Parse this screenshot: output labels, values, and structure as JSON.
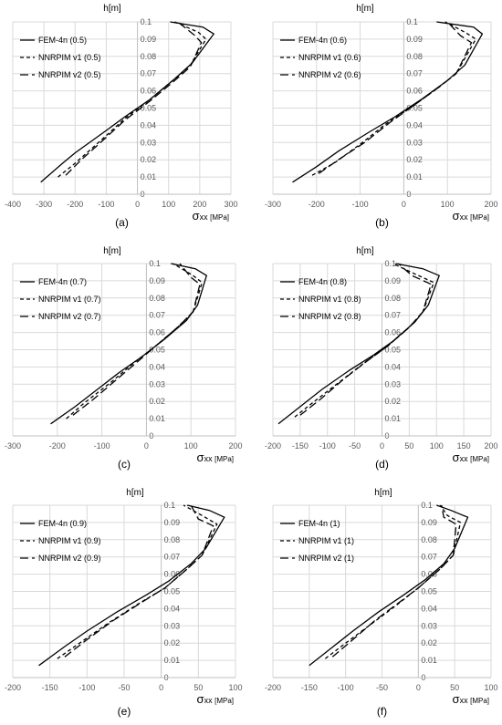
{
  "chart_data": [
    {
      "type": "line",
      "panel_label": "(a)",
      "ylabel": "h[m]",
      "xlabel_symbol": "σ",
      "xlabel_sub": "xx",
      "xlabel_unit": "[MPa]",
      "xlim": [
        -400,
        300
      ],
      "xticks": [
        "-400",
        "-300",
        "-200",
        "-100",
        "0",
        "100",
        "200",
        "300"
      ],
      "ylim": [
        0,
        0.1
      ],
      "yticks": [
        "0",
        "0.01",
        "0.02",
        "0.03",
        "0.04",
        "0.05",
        "0.06",
        "0.07",
        "0.08",
        "0.09",
        "0.1"
      ],
      "grid": true,
      "legend_position": "top-left",
      "series": [
        {
          "name": "FEM-4n (0.5)",
          "style": "solid",
          "x": [
            -310,
            -240,
            -200,
            -100,
            -40,
            40,
            120,
            175,
            245,
            210,
            105
          ],
          "y": [
            0.007,
            0.018,
            0.024,
            0.037,
            0.045,
            0.055,
            0.067,
            0.076,
            0.093,
            0.097,
            0.1
          ]
        },
        {
          "name": "NNRPIM v1 (0.5)",
          "style": "dashed",
          "x": [
            -255,
            -200,
            -100,
            -40,
            40,
            120,
            170,
            220,
            195,
            120
          ],
          "y": [
            0.01,
            0.018,
            0.034,
            0.044,
            0.055,
            0.067,
            0.075,
            0.09,
            0.094,
            0.1
          ]
        },
        {
          "name": "NNRPIM v2 (0.5)",
          "style": "longdash",
          "x": [
            -230,
            -180,
            -100,
            -40,
            40,
            120,
            170,
            205,
            185,
            130
          ],
          "y": [
            0.011,
            0.02,
            0.033,
            0.043,
            0.054,
            0.066,
            0.074,
            0.088,
            0.092,
            0.1
          ]
        }
      ]
    },
    {
      "type": "line",
      "panel_label": "(b)",
      "ylabel": "h[m]",
      "xlabel_symbol": "σ",
      "xlabel_sub": "xx",
      "xlabel_unit": "[MPa]",
      "xlim": [
        -300,
        200
      ],
      "xticks": [
        "-300",
        "-200",
        "-100",
        "0",
        "100",
        "200"
      ],
      "ylim": [
        0,
        0.1
      ],
      "yticks": [
        "0",
        "0.01",
        "0.02",
        "0.03",
        "0.04",
        "0.05",
        "0.06",
        "0.07",
        "0.08",
        "0.09",
        "0.1"
      ],
      "grid": true,
      "legend_position": "top-left",
      "series": [
        {
          "name": "FEM-4n (0.6)",
          "style": "solid",
          "x": [
            -255,
            -200,
            -150,
            -80,
            -20,
            40,
            100,
            140,
            180,
            160,
            75
          ],
          "y": [
            0.007,
            0.016,
            0.025,
            0.036,
            0.045,
            0.055,
            0.066,
            0.075,
            0.093,
            0.097,
            0.1
          ]
        },
        {
          "name": "NNRPIM v1 (0.6)",
          "style": "dashed",
          "x": [
            -210,
            -160,
            -100,
            -40,
            20,
            80,
            120,
            165,
            140,
            95
          ],
          "y": [
            0.011,
            0.018,
            0.029,
            0.041,
            0.051,
            0.062,
            0.07,
            0.09,
            0.094,
            0.1
          ]
        },
        {
          "name": "NNRPIM v2 (0.6)",
          "style": "longdash",
          "x": [
            -195,
            -150,
            -90,
            -30,
            20,
            80,
            120,
            155,
            130,
            100
          ],
          "y": [
            0.012,
            0.02,
            0.03,
            0.042,
            0.051,
            0.062,
            0.07,
            0.088,
            0.092,
            0.1
          ]
        }
      ]
    },
    {
      "type": "line",
      "panel_label": "(c)",
      "ylabel": "h[m]",
      "xlabel_symbol": "σ",
      "xlabel_sub": "xx",
      "xlabel_unit": "[MPa]",
      "xlim": [
        -300,
        200
      ],
      "xticks": [
        "-300",
        "-200",
        "-100",
        "0",
        "100",
        "200"
      ],
      "ylim": [
        0,
        0.1
      ],
      "yticks": [
        "0",
        "0.01",
        "0.02",
        "0.03",
        "0.04",
        "0.05",
        "0.06",
        "0.07",
        "0.08",
        "0.09",
        "0.1"
      ],
      "grid": true,
      "legend_position": "top-left",
      "series": [
        {
          "name": "FEM-4n (0.7)",
          "style": "solid",
          "x": [
            -215,
            -160,
            -110,
            -60,
            -10,
            40,
            90,
            115,
            135,
            110,
            55
          ],
          "y": [
            0.007,
            0.017,
            0.027,
            0.037,
            0.046,
            0.056,
            0.067,
            0.076,
            0.093,
            0.097,
            0.1
          ]
        },
        {
          "name": "NNRPIM v1 (0.7)",
          "style": "dashed",
          "x": [
            -180,
            -140,
            -80,
            -30,
            20,
            70,
            105,
            125,
            105,
            60
          ],
          "y": [
            0.01,
            0.019,
            0.031,
            0.042,
            0.052,
            0.063,
            0.072,
            0.089,
            0.093,
            0.1
          ]
        },
        {
          "name": "NNRPIM v2 (0.7)",
          "style": "longdash",
          "x": [
            -165,
            -120,
            -70,
            -20,
            20,
            70,
            105,
            120,
            100,
            75
          ],
          "y": [
            0.012,
            0.021,
            0.032,
            0.043,
            0.052,
            0.063,
            0.072,
            0.088,
            0.092,
            0.1
          ]
        }
      ]
    },
    {
      "type": "line",
      "panel_label": "(d)",
      "ylabel": "h[m]",
      "xlabel_symbol": "σ",
      "xlabel_sub": "xx",
      "xlabel_unit": "[MPa]",
      "xlim": [
        -200,
        200
      ],
      "xticks": [
        "-200",
        "-150",
        "-100",
        "-50",
        "0",
        "50",
        "100",
        "150",
        "200"
      ],
      "ylim": [
        0,
        0.1
      ],
      "yticks": [
        "0",
        "0.01",
        "0.02",
        "0.03",
        "0.04",
        "0.05",
        "0.06",
        "0.07",
        "0.08",
        "0.09",
        "0.1"
      ],
      "grid": true,
      "legend_position": "top-left",
      "series": [
        {
          "name": "FEM-4n (0.8)",
          "style": "solid",
          "x": [
            -190,
            -150,
            -110,
            -60,
            -15,
            20,
            60,
            85,
            105,
            75,
            25
          ],
          "y": [
            0.007,
            0.017,
            0.027,
            0.038,
            0.047,
            0.055,
            0.066,
            0.076,
            0.093,
            0.097,
            0.1
          ]
        },
        {
          "name": "NNRPIM v1 (0.8)",
          "style": "dashed",
          "x": [
            -160,
            -120,
            -75,
            -30,
            10,
            50,
            75,
            95,
            60,
            20
          ],
          "y": [
            0.011,
            0.021,
            0.032,
            0.043,
            0.052,
            0.063,
            0.072,
            0.089,
            0.094,
            0.1
          ]
        },
        {
          "name": "NNRPIM v2 (0.8)",
          "style": "longdash",
          "x": [
            -150,
            -110,
            -70,
            -25,
            10,
            50,
            75,
            90,
            55,
            30
          ],
          "y": [
            0.012,
            0.022,
            0.033,
            0.044,
            0.052,
            0.063,
            0.072,
            0.088,
            0.093,
            0.1
          ]
        }
      ]
    },
    {
      "type": "line",
      "panel_label": "(e)",
      "ylabel": "h[m]",
      "xlabel_symbol": "σ",
      "xlabel_sub": "xx",
      "xlabel_unit": "[MPa]",
      "xlim": [
        -200,
        100
      ],
      "xticks": [
        "-200",
        "-150",
        "-100",
        "-50",
        "0",
        "50",
        "100"
      ],
      "ylim": [
        0,
        0.1
      ],
      "yticks": [
        "0",
        "0.01",
        "0.02",
        "0.03",
        "0.04",
        "0.05",
        "0.06",
        "0.07",
        "0.08",
        "0.09",
        "0.1"
      ],
      "grid": true,
      "legend_position": "top-left",
      "series": [
        {
          "name": "FEM-4n (0.9)",
          "style": "solid",
          "x": [
            -165,
            -130,
            -100,
            -60,
            -20,
            10,
            40,
            60,
            85,
            65,
            35
          ],
          "y": [
            0.007,
            0.018,
            0.027,
            0.038,
            0.048,
            0.056,
            0.066,
            0.075,
            0.093,
            0.097,
            0.1
          ]
        },
        {
          "name": "NNRPIM v1 (0.9)",
          "style": "dashed",
          "x": [
            -140,
            -110,
            -70,
            -30,
            5,
            35,
            55,
            75,
            55,
            30
          ],
          "y": [
            0.011,
            0.02,
            0.032,
            0.043,
            0.052,
            0.063,
            0.071,
            0.089,
            0.094,
            0.1
          ]
        },
        {
          "name": "NNRPIM v2 (0.9)",
          "style": "longdash",
          "x": [
            -130,
            -100,
            -65,
            -25,
            5,
            35,
            55,
            70,
            50,
            40
          ],
          "y": [
            0.012,
            0.022,
            0.033,
            0.044,
            0.052,
            0.063,
            0.071,
            0.088,
            0.092,
            0.1
          ]
        }
      ]
    },
    {
      "type": "line",
      "panel_label": "(f)",
      "ylabel": "h[m]",
      "xlabel_symbol": "σ",
      "xlabel_sub": "xx",
      "xlabel_unit": "[MPa]",
      "xlim": [
        -200,
        100
      ],
      "xticks": [
        "-200",
        "-150",
        "-100",
        "-50",
        "0",
        "50",
        "100"
      ],
      "ylim": [
        0,
        0.1
      ],
      "yticks": [
        "0",
        "0.01",
        "0.02",
        "0.03",
        "0.04",
        "0.05",
        "0.06",
        "0.07",
        "0.08",
        "0.09",
        "0.1"
      ],
      "grid": true,
      "legend_position": "top-left",
      "series": [
        {
          "name": "FEM-4n (1)",
          "style": "solid",
          "x": [
            -150,
            -120,
            -90,
            -55,
            -20,
            10,
            35,
            50,
            68,
            45,
            25
          ],
          "y": [
            0.007,
            0.017,
            0.027,
            0.038,
            0.048,
            0.057,
            0.066,
            0.075,
            0.093,
            0.097,
            0.1
          ]
        },
        {
          "name": "NNRPIM v1 (1)",
          "style": "dashed",
          "x": [
            -128,
            -100,
            -65,
            -30,
            0,
            30,
            48,
            58,
            40,
            30
          ],
          "y": [
            0.011,
            0.02,
            0.031,
            0.042,
            0.052,
            0.063,
            0.071,
            0.09,
            0.094,
            0.1
          ]
        },
        {
          "name": "NNRPIM v2 (1)",
          "style": "longdash",
          "x": [
            -118,
            -90,
            -60,
            -25,
            0,
            30,
            48,
            52,
            35,
            32
          ],
          "y": [
            0.012,
            0.022,
            0.033,
            0.044,
            0.052,
            0.063,
            0.071,
            0.089,
            0.093,
            0.1
          ]
        }
      ]
    }
  ]
}
